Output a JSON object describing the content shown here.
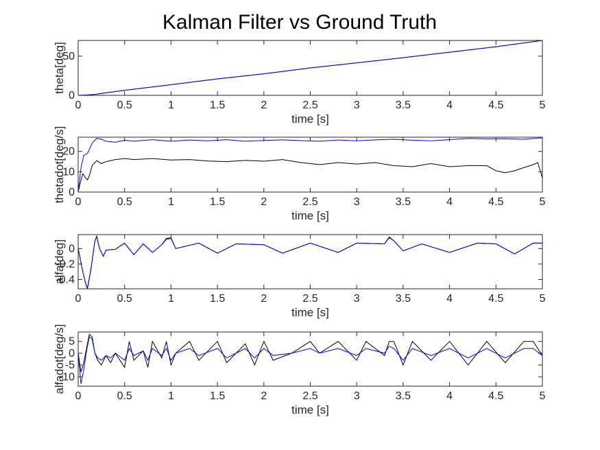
{
  "figure": {
    "title": "Kalman Filter vs Ground Truth"
  },
  "colors": {
    "estimate": "#0000ff",
    "truth": "#000000",
    "axis": "#262626"
  },
  "chart_data": [
    {
      "type": "line",
      "ylabel": "theta[deg]",
      "xlabel": "time [s]",
      "xlim": [
        0,
        5
      ],
      "ylim": [
        0,
        70
      ],
      "xticks": [
        0,
        0.5,
        1,
        1.5,
        2,
        2.5,
        3,
        3.5,
        4,
        4.5,
        5
      ],
      "xtick_labels": [
        "0",
        "0.5",
        "1",
        "1.5",
        "2",
        "2.5",
        "3",
        "3.5",
        "4",
        "4.5",
        "5"
      ],
      "yticks": [
        0,
        50
      ],
      "ytick_labels": [
        "0",
        "50"
      ],
      "series": [
        {
          "color": "#000000",
          "x": [
            0,
            0.1,
            0.2,
            0.3,
            0.5,
            1,
            1.5,
            2,
            2.5,
            3,
            3.5,
            4,
            4.5,
            5
          ],
          "y": [
            0,
            0.4,
            1.6,
            3.3,
            6.5,
            13.6,
            21,
            27.5,
            35,
            41.5,
            48,
            55,
            62,
            70
          ]
        },
        {
          "color": "#0000ff",
          "x": [
            0,
            0.1,
            0.2,
            0.3,
            0.5,
            1,
            1.5,
            2,
            2.5,
            3,
            3.5,
            4,
            4.5,
            5
          ],
          "y": [
            0,
            0.4,
            1.6,
            3.3,
            6.5,
            13.6,
            21,
            27.5,
            35,
            41.5,
            48,
            55,
            62,
            70
          ]
        }
      ]
    },
    {
      "type": "line",
      "ylabel": "thetadot[deg/s]",
      "xlabel": "time [s]",
      "xlim": [
        0,
        5
      ],
      "ylim": [
        0,
        27
      ],
      "xticks": [
        0,
        0.5,
        1,
        1.5,
        2,
        2.5,
        3,
        3.5,
        4,
        4.5,
        5
      ],
      "xtick_labels": [
        "0",
        "0.5",
        "1",
        "1.5",
        "2",
        "2.5",
        "3",
        "3.5",
        "4",
        "4.5",
        "5"
      ],
      "yticks": [
        0,
        10,
        20
      ],
      "ytick_labels": [
        "0",
        "10",
        "20"
      ],
      "series": [
        {
          "color": "#000000",
          "x": [
            0,
            0.02,
            0.05,
            0.08,
            0.1,
            0.12,
            0.15,
            0.2,
            0.25,
            0.3,
            0.4,
            0.5,
            0.6,
            0.8,
            1,
            1.2,
            1.4,
            1.6,
            1.8,
            2,
            2.2,
            2.4,
            2.6,
            2.8,
            3,
            3.2,
            3.4,
            3.6,
            3.8,
            4,
            4.2,
            4.4,
            4.5,
            4.6,
            4.7,
            4.8,
            4.9,
            4.95,
            5
          ],
          "y": [
            0,
            4,
            9,
            7,
            6,
            8,
            13,
            15.5,
            14,
            15,
            16,
            16.5,
            16,
            16.5,
            15.8,
            16,
            15.3,
            15,
            15.6,
            15.2,
            16,
            14.5,
            13.5,
            14.5,
            13.8,
            14.5,
            13,
            12.5,
            14,
            12.5,
            13,
            13,
            10.5,
            9.5,
            10.5,
            12,
            13.5,
            14.5,
            7
          ]
        },
        {
          "color": "#0000ff",
          "x": [
            0,
            0.03,
            0.06,
            0.1,
            0.15,
            0.2,
            0.25,
            0.3,
            0.4,
            0.5,
            0.6,
            0.8,
            1,
            1.2,
            1.4,
            1.6,
            1.8,
            2,
            2.2,
            2.4,
            2.6,
            2.8,
            3,
            3.2,
            3.4,
            3.6,
            3.8,
            4,
            4.2,
            4.4,
            4.6,
            4.8,
            5
          ],
          "y": [
            0,
            12,
            18,
            19,
            24,
            26.5,
            26,
            25,
            24.5,
            25.5,
            25,
            25.8,
            25,
            25.6,
            25.2,
            25.8,
            25,
            25.4,
            25.7,
            25.3,
            25,
            25.6,
            25.2,
            25.7,
            26,
            25.5,
            25.2,
            25.8,
            26.4,
            26.2,
            26.3,
            26,
            26.7
          ]
        }
      ]
    },
    {
      "type": "line",
      "ylabel": "alfa[deg]",
      "xlabel": "time [s]",
      "xlim": [
        0,
        5
      ],
      "ylim": [
        -0.52,
        0.18
      ],
      "xticks": [
        0,
        0.5,
        1,
        1.5,
        2,
        2.5,
        3,
        3.5,
        4,
        4.5,
        5
      ],
      "xtick_labels": [
        "0",
        "0.5",
        "1",
        "1.5",
        "2",
        "2.5",
        "3",
        "3.5",
        "4",
        "4.5",
        "5"
      ],
      "yticks": [
        0,
        -0.2,
        -0.4
      ],
      "ytick_labels": [
        "0",
        "-0.2",
        "-0.4"
      ],
      "series": [
        {
          "color": "#000000",
          "x": [
            0,
            0.05,
            0.08,
            0.1,
            0.14,
            0.18,
            0.2,
            0.23,
            0.27,
            0.3,
            0.4,
            0.5,
            0.6,
            0.7,
            0.8,
            0.9,
            0.95,
            1,
            1.05,
            1.3,
            1.5,
            1.7,
            2,
            2.2,
            2.5,
            2.8,
            3,
            3.3,
            3.35,
            3.4,
            3.5,
            3.7,
            4,
            4.3,
            4.5,
            4.7,
            4.9,
            5
          ],
          "y": [
            0,
            -0.3,
            -0.45,
            -0.52,
            -0.25,
            0.1,
            0.16,
            0,
            -0.1,
            -0.02,
            -0.01,
            0.07,
            -0.08,
            0.06,
            -0.05,
            0.05,
            0.13,
            0.14,
            0,
            0.07,
            -0.06,
            0.06,
            0.05,
            -0.06,
            0.07,
            -0.05,
            0.07,
            0.06,
            0.15,
            0.1,
            -0.03,
            0.06,
            -0.05,
            0.07,
            0.06,
            -0.07,
            0.07,
            0.07
          ]
        },
        {
          "color": "#0000ff",
          "x": [
            0,
            0.05,
            0.08,
            0.1,
            0.14,
            0.18,
            0.2,
            0.23,
            0.27,
            0.3,
            0.4,
            0.5,
            0.6,
            0.7,
            0.8,
            0.9,
            0.95,
            1,
            1.05,
            1.3,
            1.5,
            1.7,
            2,
            2.2,
            2.5,
            2.8,
            3,
            3.3,
            3.35,
            3.4,
            3.5,
            3.7,
            4,
            4.3,
            4.5,
            4.7,
            4.9,
            5
          ],
          "y": [
            0,
            -0.3,
            -0.45,
            -0.51,
            -0.24,
            0.1,
            0.15,
            0,
            -0.1,
            -0.02,
            -0.01,
            0.07,
            -0.08,
            0.06,
            -0.05,
            0.05,
            0.12,
            0.13,
            0,
            0.07,
            -0.06,
            0.06,
            0.05,
            -0.06,
            0.07,
            -0.05,
            0.07,
            0.06,
            0.14,
            0.1,
            -0.03,
            0.06,
            -0.05,
            0.07,
            0.06,
            -0.07,
            0.07,
            0.07
          ]
        }
      ]
    },
    {
      "type": "line",
      "ylabel": "alfadot[deg/s]",
      "xlabel": "time [s]",
      "xlim": [
        0,
        5
      ],
      "ylim": [
        -14,
        9
      ],
      "xticks": [
        0,
        0.5,
        1,
        1.5,
        2,
        2.5,
        3,
        3.5,
        4,
        4.5,
        5
      ],
      "xtick_labels": [
        "0",
        "0.5",
        "1",
        "1.5",
        "2",
        "2.5",
        "3",
        "3.5",
        "4",
        "4.5",
        "5"
      ],
      "yticks": [
        5,
        0,
        -5,
        -10
      ],
      "ytick_labels": [
        "5",
        "0",
        "-5",
        "-10"
      ],
      "series": [
        {
          "color": "#000000",
          "x": [
            0,
            0.03,
            0.06,
            0.09,
            0.12,
            0.15,
            0.18,
            0.21,
            0.25,
            0.3,
            0.35,
            0.4,
            0.5,
            0.55,
            0.6,
            0.7,
            0.75,
            0.8,
            0.9,
            0.95,
            1,
            1.05,
            1.2,
            1.3,
            1.5,
            1.6,
            1.8,
            1.9,
            2,
            2.1,
            2.3,
            2.5,
            2.6,
            2.8,
            3,
            3.1,
            3.3,
            3.35,
            3.4,
            3.5,
            3.6,
            3.8,
            4,
            4.2,
            4.4,
            4.6,
            4.8,
            4.9,
            5
          ],
          "y": [
            0,
            -8,
            -4,
            2,
            8,
            7,
            0,
            -3,
            -5,
            -1,
            -4,
            0,
            -6,
            5,
            -3,
            1,
            -6,
            5,
            -2,
            5,
            -5,
            0,
            5,
            -3,
            5,
            -4,
            4,
            -5,
            5,
            -3,
            0,
            5,
            0,
            5,
            -3,
            5,
            -1,
            5,
            5,
            -5,
            5,
            -3,
            5,
            -5,
            5,
            -4,
            5,
            5,
            -1
          ]
        },
        {
          "color": "#0000ff",
          "x": [
            0,
            0.03,
            0.06,
            0.09,
            0.12,
            0.15,
            0.18,
            0.21,
            0.25,
            0.3,
            0.35,
            0.4,
            0.5,
            0.55,
            0.6,
            0.7,
            0.75,
            0.8,
            0.9,
            0.95,
            1,
            1.05,
            1.2,
            1.3,
            1.5,
            1.6,
            1.8,
            1.9,
            2,
            2.1,
            2.3,
            2.5,
            2.6,
            2.8,
            3,
            3.1,
            3.3,
            3.35,
            3.4,
            3.5,
            3.6,
            3.8,
            4,
            4.2,
            4.4,
            4.6,
            4.8,
            4.9,
            5
          ],
          "y": [
            0,
            -13,
            -7,
            1,
            7,
            6,
            0,
            -2,
            -3,
            -1,
            -2,
            0,
            -3,
            2,
            -1,
            1,
            -3,
            2,
            -1,
            2,
            -3,
            0,
            2,
            -1,
            2,
            -2,
            2,
            -2,
            2,
            -1,
            0,
            2,
            0,
            2,
            -1,
            2,
            0,
            3,
            2,
            -3,
            2,
            -1,
            2,
            -2,
            2,
            -2,
            2,
            2,
            -1
          ]
        }
      ]
    }
  ]
}
